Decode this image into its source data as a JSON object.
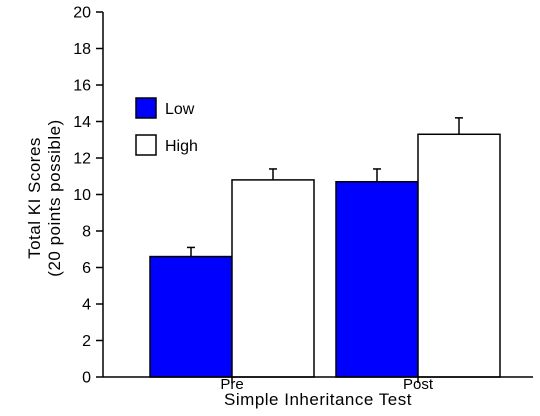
{
  "chart_data": {
    "type": "bar",
    "title": "",
    "xlabel": "Simple Inheritance Test",
    "ylabel_lines": [
      "Total KI Scores",
      "(20 points possible)"
    ],
    "categories": [
      "Pre",
      "Post"
    ],
    "series": [
      {
        "name": "Low",
        "values": [
          6.6,
          10.7
        ],
        "errors": [
          0.5,
          0.7
        ],
        "color": "#0000ff"
      },
      {
        "name": "High",
        "values": [
          10.8,
          13.3
        ],
        "errors": [
          0.6,
          0.9
        ],
        "color": "#ffffff"
      }
    ],
    "ylim": [
      0,
      20
    ],
    "yticks": [
      0,
      2,
      4,
      6,
      8,
      10,
      12,
      14,
      16,
      18,
      20
    ],
    "grid": false,
    "legend_position": "top-left",
    "error_bars": "upper"
  }
}
